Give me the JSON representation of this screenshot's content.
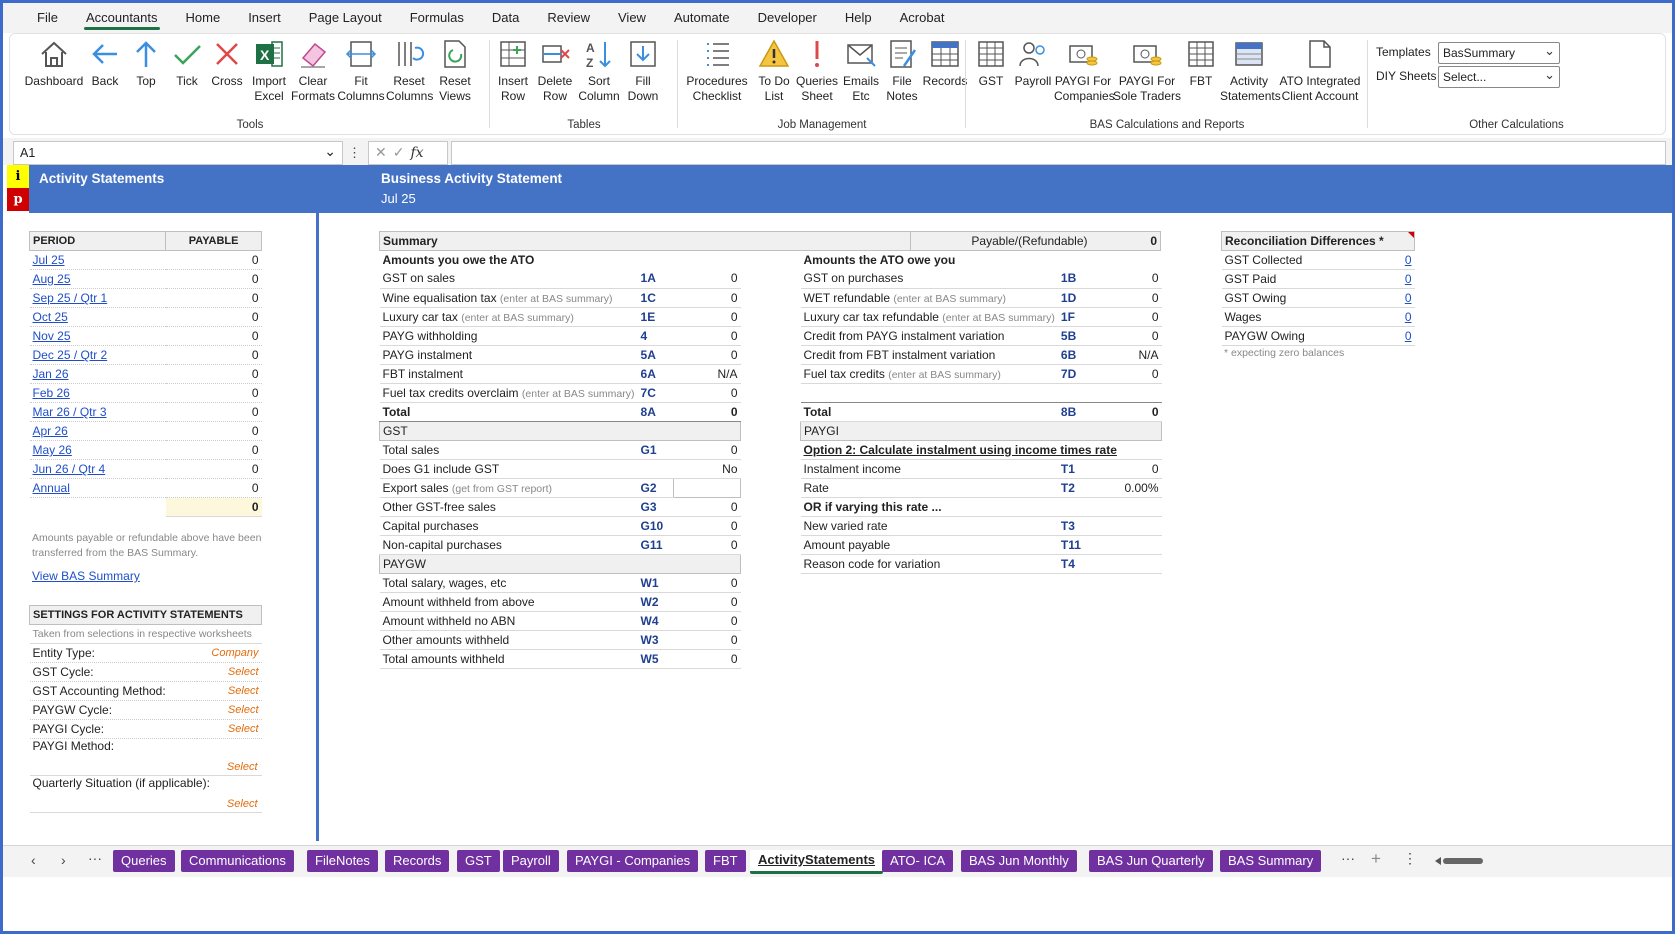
{
  "menu": [
    "File",
    "Accountants",
    "Home",
    "Insert",
    "Page Layout",
    "Formulas",
    "Data",
    "Review",
    "View",
    "Automate",
    "Developer",
    "Help",
    "Acrobat"
  ],
  "ribbon": {
    "tools": {
      "label": "Tools",
      "buttons": [
        [
          "Dashboard",
          ""
        ],
        [
          "Back",
          ""
        ],
        [
          "Top",
          ""
        ],
        [
          "Tick",
          ""
        ],
        [
          "Cross",
          ""
        ],
        [
          "Import",
          "Excel"
        ],
        [
          "Clear",
          "Formats"
        ],
        [
          "Fit",
          "Columns"
        ],
        [
          "Reset",
          "Columns"
        ],
        [
          "Reset",
          "Views"
        ]
      ]
    },
    "tables": {
      "label": "Tables",
      "buttons": [
        [
          "Insert",
          "Row"
        ],
        [
          "Delete",
          "Row"
        ],
        [
          "Sort",
          "Column"
        ],
        [
          "Fill",
          "Down"
        ]
      ]
    },
    "job": {
      "label": "Job Management",
      "buttons": [
        [
          "Procedures",
          "Checklist"
        ],
        [
          "To Do",
          "List"
        ],
        [
          "Queries",
          "Sheet"
        ],
        [
          "Emails",
          "Etc"
        ],
        [
          "File",
          "Notes"
        ],
        [
          "Records",
          ""
        ]
      ]
    },
    "bas": {
      "label": "BAS Calculations and Reports",
      "buttons": [
        [
          "GST",
          ""
        ],
        [
          "Payroll",
          ""
        ],
        [
          "PAYGI For",
          "Companies"
        ],
        [
          "PAYGI For",
          "Sole Traders"
        ],
        [
          "FBT",
          ""
        ],
        [
          "Activity",
          "Statements"
        ],
        [
          "ATO Integrated",
          "Client Account"
        ]
      ]
    },
    "other": {
      "label": "Other Calculations",
      "templates_label": "Templates",
      "templates_value": "BasSummary",
      "diy_label": "DIY Sheets",
      "diy_value": "Select..."
    }
  },
  "formula_bar": {
    "cell_ref": "A1",
    "dots": "⋮",
    "x": "✕",
    "check": "✓",
    "fx": "fx",
    "content": ""
  },
  "left": {
    "marker_i": "i",
    "marker_p": "p",
    "title": "Activity Statements",
    "period_header": "PERIOD",
    "payable_header": "PAYABLE",
    "periods": [
      {
        "label": "Jul 25",
        "value": "0"
      },
      {
        "label": "Aug 25",
        "value": "0"
      },
      {
        "label": "Sep 25  /  Qtr 1",
        "value": "0"
      },
      {
        "label": "Oct 25",
        "value": "0"
      },
      {
        "label": "Nov 25",
        "value": "0"
      },
      {
        "label": "Dec 25  /  Qtr 2",
        "value": "0"
      },
      {
        "label": "Jan 26",
        "value": "0"
      },
      {
        "label": "Feb 26",
        "value": "0"
      },
      {
        "label": "Mar 26  /  Qtr 3",
        "value": "0"
      },
      {
        "label": "Apr 26",
        "value": "0"
      },
      {
        "label": "May 26",
        "value": "0"
      },
      {
        "label": "Jun 26  /  Qtr 4",
        "value": "0"
      },
      {
        "label": "Annual",
        "value": "0"
      }
    ],
    "total": "0",
    "note": "Amounts payable or refundable above have been transferred from the BAS Summary.",
    "view_link": "View BAS Summary",
    "settings_header": "SETTINGS FOR ACTIVITY STATEMENTS",
    "settings_note": "Taken from selections in respective worksheets",
    "settings": [
      {
        "label": "Entity Type:",
        "value": "Company"
      },
      {
        "label": "GST Cycle:",
        "value": "Select"
      },
      {
        "label": "GST Accounting Method:",
        "value": "Select"
      },
      {
        "label": "PAYGW Cycle:",
        "value": "Select"
      },
      {
        "label": "PAYGI Cycle:",
        "value": "Select"
      },
      {
        "label": "PAYGI Method:",
        "value": "Select"
      },
      {
        "label": "Quarterly Situation  (if applicable):",
        "value": "Select"
      }
    ]
  },
  "main": {
    "title": "Business Activity Statement",
    "period": "Jul 25",
    "summary_label": "Summary",
    "payable_label": "Payable/(Refundable)",
    "summary_value": "0",
    "owe_header": "Amounts you owe the ATO",
    "owe": [
      {
        "label": "GST on sales",
        "note": "",
        "code": "1A",
        "value": "0"
      },
      {
        "label": "Wine equalisation tax",
        "note": "(enter at BAS summary)",
        "code": "1C",
        "value": "0"
      },
      {
        "label": "Luxury car tax",
        "note": "(enter at BAS summary)",
        "code": "1E",
        "value": "0"
      },
      {
        "label": "PAYG withholding",
        "note": "",
        "code": "4",
        "value": "0"
      },
      {
        "label": "PAYG instalment",
        "note": "",
        "code": "5A",
        "value": "0"
      },
      {
        "label": "FBT instalment",
        "note": "",
        "code": "6A",
        "value": "N/A"
      },
      {
        "label": "Fuel tax credits overclaim",
        "note": "(enter at BAS summary)",
        "code": "7C",
        "value": "0"
      }
    ],
    "owe_total": {
      "label": "Total",
      "code": "8A",
      "value": "0"
    },
    "gst_header": "GST",
    "gst": [
      {
        "label": "Total sales",
        "note": "",
        "code": "G1",
        "value": "0"
      },
      {
        "label": "Does G1 include GST",
        "note": "",
        "code": "",
        "value": "No"
      },
      {
        "label": "Export sales",
        "note": "(get from GST report)",
        "code": "G2",
        "value": ""
      },
      {
        "label": "Other GST-free sales",
        "note": "",
        "code": "G3",
        "value": "0"
      },
      {
        "label": "Capital purchases",
        "note": "",
        "code": "G10",
        "value": "0"
      },
      {
        "label": "Non-capital purchases",
        "note": "",
        "code": "G11",
        "value": "0"
      }
    ],
    "paygw_header": "PAYGW",
    "paygw": [
      {
        "label": "Total salary, wages, etc",
        "code": "W1",
        "value": "0"
      },
      {
        "label": "Amount withheld from above",
        "code": "W2",
        "value": "0"
      },
      {
        "label": "Amount withheld no ABN",
        "code": "W4",
        "value": "0"
      },
      {
        "label": "Other amounts withheld",
        "code": "W3",
        "value": "0"
      },
      {
        "label": "Total amounts withheld",
        "code": "W5",
        "value": "0"
      }
    ],
    "owed_header": "Amounts the ATO owe you",
    "owed": [
      {
        "label": "GST on purchases",
        "note": "",
        "code": "1B",
        "value": "0"
      },
      {
        "label": "WET refundable",
        "note": "(enter at BAS summary)",
        "code": "1D",
        "value": "0"
      },
      {
        "label": "Luxury car tax refundable",
        "note": "(enter at BAS summary)",
        "code": "1F",
        "value": "0"
      },
      {
        "label": "Credit from PAYG instalment variation",
        "note": "",
        "code": "5B",
        "value": "0"
      },
      {
        "label": "Credit from FBT instalment variation",
        "note": "",
        "code": "6B",
        "value": "N/A"
      },
      {
        "label": "Fuel tax credits",
        "note": "(enter at BAS summary)",
        "code": "7D",
        "value": "0"
      }
    ],
    "owed_total": {
      "label": "Total",
      "code": "8B",
      "value": "0"
    },
    "paygi_header": "PAYGI",
    "paygi_option": "Option 2:  Calculate instalment using income times rate",
    "paygi": [
      {
        "label": "Instalment income",
        "code": "T1",
        "value": "0"
      },
      {
        "label": "Rate",
        "code": "T2",
        "value": "0.00%"
      },
      {
        "label": "OR if varying this rate ...",
        "code": "",
        "value": ""
      },
      {
        "label": "New varied rate",
        "code": "T3",
        "value": ""
      },
      {
        "label": "Amount payable",
        "code": "T11",
        "value": ""
      },
      {
        "label": "Reason code for variation",
        "code": "T4",
        "value": ""
      }
    ]
  },
  "recon": {
    "header": "Reconciliation Differences *",
    "rows": [
      {
        "label": "GST Collected",
        "value": "0"
      },
      {
        "label": "GST Paid",
        "value": "0"
      },
      {
        "label": "GST Owing",
        "value": "0"
      },
      {
        "label": "Wages",
        "value": "0"
      },
      {
        "label": "PAYGW Owing",
        "value": "0"
      }
    ],
    "note": "* expecting zero balances"
  },
  "tabs": [
    "Queries",
    "Communications",
    "FileNotes",
    "Records",
    "GST",
    "Payroll",
    "PAYGI - Companies",
    "FBT",
    "ActivityStatements",
    "ATO- ICA",
    "BAS Jun Monthly",
    "BAS Jun Quarterly",
    "BAS Summary"
  ],
  "active_tab": "ActivityStatements",
  "colors": {
    "accent": "#4472c4",
    "tab": "#7030a0",
    "excel_green": "#1e7145",
    "select": "#e26b0a"
  }
}
